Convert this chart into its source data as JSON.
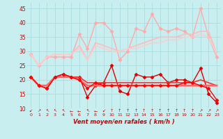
{
  "x": [
    0,
    1,
    2,
    3,
    4,
    5,
    6,
    7,
    8,
    9,
    10,
    11,
    12,
    13,
    14,
    15,
    16,
    17,
    18,
    19,
    20,
    21,
    22,
    23
  ],
  "lines": [
    {
      "y": [
        29,
        25,
        28,
        28,
        28,
        28,
        36,
        31,
        40,
        40,
        37,
        27,
        30,
        38,
        37,
        43,
        38,
        37,
        38,
        37,
        35,
        45,
        35,
        28
      ],
      "color": "#ffaaaa",
      "lw": 1.0,
      "marker": "D",
      "ms": 2.5
    },
    {
      "y": [
        29,
        25,
        28,
        29,
        29,
        29,
        32,
        27,
        33,
        32,
        31,
        30,
        31,
        32,
        33,
        34,
        35,
        35,
        35,
        36,
        36,
        37,
        37,
        29
      ],
      "color": "#ffbbbb",
      "lw": 1.2,
      "marker": null,
      "ms": 0
    },
    {
      "y": [
        29,
        25,
        28,
        29,
        29,
        29,
        31,
        27,
        32,
        31,
        30,
        30,
        31,
        31,
        32,
        33,
        33,
        34,
        34,
        35,
        35,
        36,
        35,
        29
      ],
      "color": "#ffcccc",
      "lw": 1.2,
      "marker": null,
      "ms": 0
    },
    {
      "y": [
        21,
        18,
        17,
        21,
        22,
        21,
        21,
        14,
        18,
        19,
        25,
        16,
        15,
        22,
        21,
        21,
        22,
        19,
        20,
        20,
        19,
        24,
        15,
        12
      ],
      "color": "#dd0000",
      "lw": 1.0,
      "marker": "D",
      "ms": 2.5
    },
    {
      "y": [
        21,
        18,
        18,
        21,
        21,
        21,
        21,
        19,
        19,
        19,
        19,
        19,
        19,
        19,
        19,
        19,
        19,
        19,
        19,
        19,
        19,
        20,
        19,
        18
      ],
      "color": "#ee3333",
      "lw": 1.2,
      "marker": null,
      "ms": 0
    },
    {
      "y": [
        21,
        18,
        18,
        21,
        21,
        21,
        20,
        18,
        18,
        18,
        18,
        18,
        18,
        18,
        18,
        18,
        18,
        18,
        18,
        18,
        18,
        18,
        18,
        18
      ],
      "color": "#ff6666",
      "lw": 2.0,
      "marker": null,
      "ms": 0
    },
    {
      "y": [
        21,
        18,
        17,
        21,
        22,
        21,
        20,
        17,
        19,
        18,
        18,
        18,
        18,
        18,
        18,
        18,
        18,
        18,
        18,
        19,
        19,
        18,
        17,
        13
      ],
      "color": "#ff0000",
      "lw": 1.0,
      "marker": "D",
      "ms": 2.5
    }
  ],
  "wind_symbols": [
    "↙",
    "↗",
    "↖",
    "↖",
    "↖",
    "←",
    "←",
    "↖",
    "←",
    "↙",
    "↑",
    "↑",
    "↑",
    "↑",
    "↑",
    "↑",
    "↑",
    "↑",
    "↑",
    "↑",
    "↑",
    "↗",
    "↗",
    "↗"
  ],
  "xlabel": "Vent moyen/en rafales ( km/h )",
  "ylim": [
    10,
    47
  ],
  "yticks": [
    10,
    15,
    20,
    25,
    30,
    35,
    40,
    45
  ],
  "bg_color": "#c8eef0",
  "grid_color": "#aadddd",
  "tick_color": "#cc0000",
  "label_color": "#cc0000"
}
